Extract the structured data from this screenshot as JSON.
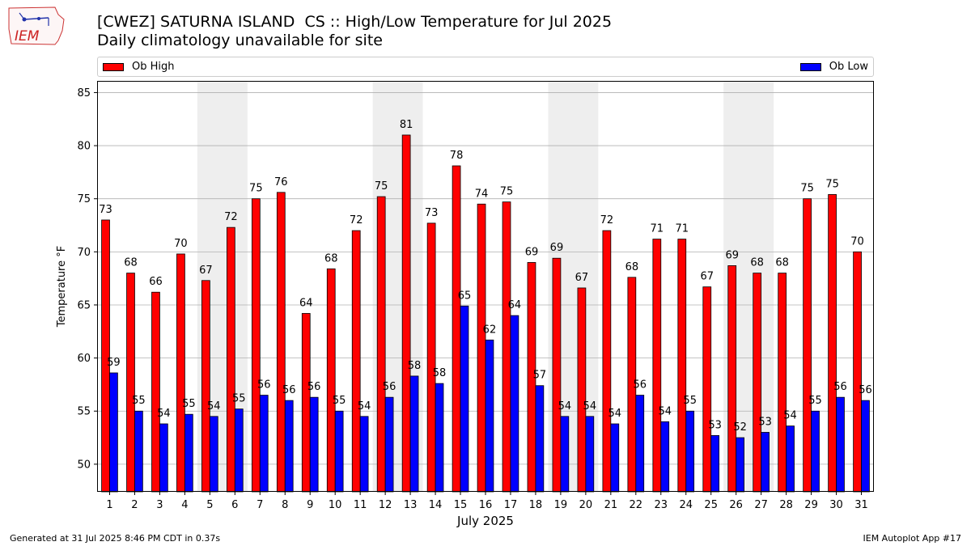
{
  "header": {
    "title": "[CWEZ] SATURNA ISLAND  CS :: High/Low Temperature for Jul 2025",
    "subtitle": "Daily climatology unavailable for site"
  },
  "logo": {
    "text": "IEM",
    "icon": "iem-iowa-logo"
  },
  "footer": {
    "generated": "Generated at 31 Jul 2025 8:46 PM CDT in 0.37s",
    "app": "IEM Autoplot App #17"
  },
  "colors": {
    "high": "#ff0000",
    "low": "#0000ff",
    "weekend_shade": "#eeeeee",
    "grid": "#b0b0b0"
  },
  "chart_data": {
    "type": "bar",
    "title": "[CWEZ] SATURNA ISLAND  CS :: High/Low Temperature for Jul 2025",
    "subtitle": "Daily climatology unavailable for site",
    "xlabel": "July 2025",
    "ylabel": "Temperature °F",
    "ylim": [
      47.4,
      86.1
    ],
    "yticks": [
      50,
      55,
      60,
      65,
      70,
      75,
      80,
      85
    ],
    "categories": [
      "1",
      "2",
      "3",
      "4",
      "5",
      "6",
      "7",
      "8",
      "9",
      "10",
      "11",
      "12",
      "13",
      "14",
      "15",
      "16",
      "17",
      "18",
      "19",
      "20",
      "21",
      "22",
      "23",
      "24",
      "25",
      "26",
      "27",
      "28",
      "29",
      "30",
      "31"
    ],
    "shaded_ranges": [
      [
        5,
        6
      ],
      [
        12,
        13
      ],
      [
        19,
        20
      ],
      [
        26,
        27
      ]
    ],
    "grid": true,
    "legend_position": "top",
    "series": [
      {
        "name": "Ob High",
        "color": "#ff0000",
        "values": [
          73.0,
          68.0,
          66.2,
          69.8,
          67.3,
          72.3,
          75.0,
          75.6,
          64.2,
          68.4,
          72.0,
          75.2,
          81.0,
          72.7,
          78.1,
          74.5,
          74.7,
          69.0,
          69.4,
          66.6,
          72.0,
          67.6,
          71.2,
          71.2,
          66.7,
          68.7,
          68.0,
          68.0,
          75.0,
          75.4,
          70.0
        ],
        "labels": [
          "73",
          "68",
          "66",
          "70",
          "67",
          "72",
          "75",
          "76",
          "64",
          "68",
          "72",
          "75",
          "81",
          "73",
          "78",
          "74",
          "75",
          "69",
          "69",
          "67",
          "72",
          "68",
          "71",
          "71",
          "67",
          "69",
          "68",
          "68",
          "75",
          "75",
          "70"
        ]
      },
      {
        "name": "Ob Low",
        "color": "#0000ff",
        "values": [
          58.6,
          55.0,
          53.8,
          54.7,
          54.5,
          55.2,
          56.5,
          56.0,
          56.3,
          55.0,
          54.5,
          56.3,
          58.3,
          57.6,
          64.9,
          61.7,
          64.0,
          57.4,
          54.5,
          54.5,
          53.8,
          56.5,
          54.0,
          55.0,
          52.7,
          52.5,
          53.0,
          53.6,
          55.0,
          56.3,
          56.0
        ],
        "labels": [
          "59",
          "55",
          "54",
          "55",
          "54",
          "55",
          "56",
          "56",
          "56",
          "55",
          "54",
          "56",
          "58",
          "58",
          "65",
          "62",
          "64",
          "57",
          "54",
          "54",
          "54",
          "56",
          "54",
          "55",
          "53",
          "52",
          "53",
          "54",
          "55",
          "56",
          "56"
        ]
      }
    ]
  }
}
